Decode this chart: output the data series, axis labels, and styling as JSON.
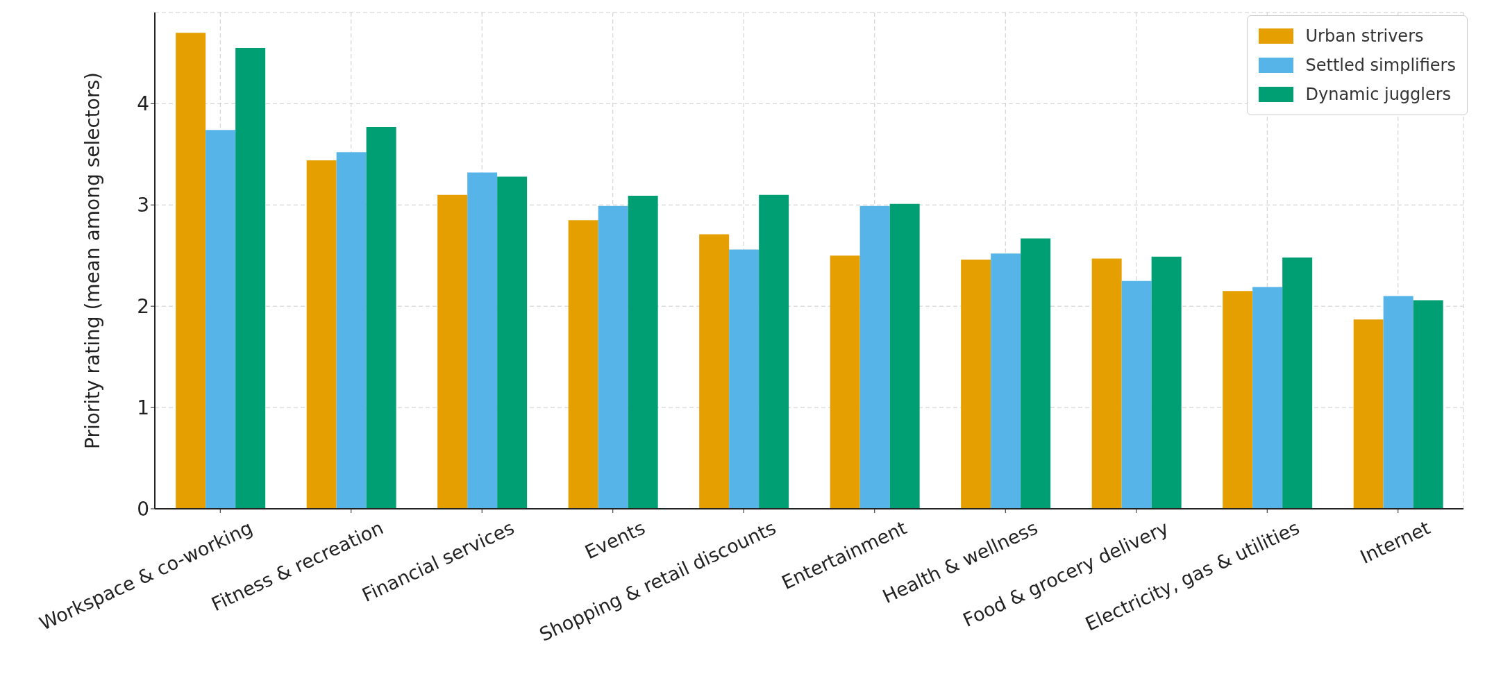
{
  "chart_data": {
    "type": "bar",
    "ylabel": "Priority rating (mean among selectors)",
    "categories": [
      "Workspace & co-working",
      "Fitness & recreation",
      "Financial services",
      "Events",
      "Shopping & retail discounts",
      "Entertainment",
      "Health & wellness",
      "Food & grocery delivery",
      "Electricity, gas & utilities",
      "Internet"
    ],
    "series": [
      {
        "name": "Urban strivers",
        "color": "#e69f00",
        "values": [
          4.7,
          3.44,
          3.1,
          2.85,
          2.71,
          2.5,
          2.46,
          2.47,
          2.15,
          1.87
        ]
      },
      {
        "name": "Settled simplifiers",
        "color": "#56b4e9",
        "values": [
          3.74,
          3.52,
          3.32,
          2.99,
          2.56,
          2.99,
          2.52,
          2.25,
          2.19,
          2.1
        ]
      },
      {
        "name": "Dynamic jugglers",
        "color": "#009e73",
        "values": [
          4.55,
          3.77,
          3.28,
          3.09,
          3.1,
          3.01,
          2.67,
          2.49,
          2.48,
          2.06
        ]
      }
    ],
    "ylim": [
      0,
      4.9
    ],
    "yticks": [
      0,
      1,
      2,
      3,
      4
    ],
    "grid": true,
    "legend": "top right"
  }
}
